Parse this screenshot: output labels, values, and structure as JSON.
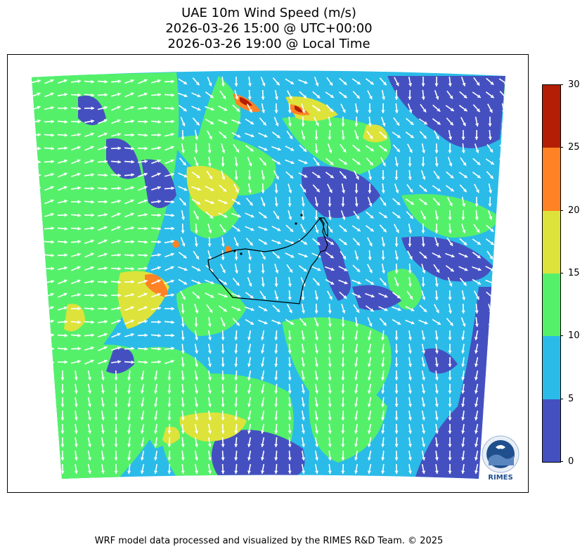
{
  "title": {
    "line1": "UAE 10m Wind Speed (m/s)",
    "line2": "2026-03-26 15:00 @ UTC+00:00",
    "line3": "2026-03-26 19:00 @ Local Time"
  },
  "colorbar": {
    "ticks": [
      "0",
      "5",
      "10",
      "15",
      "20",
      "25",
      "30"
    ],
    "bins": [
      {
        "min": 0,
        "max": 5,
        "color": "#4550c0"
      },
      {
        "min": 5,
        "max": 10,
        "color": "#2bbbe8"
      },
      {
        "min": 10,
        "max": 15,
        "color": "#55f06a"
      },
      {
        "min": 15,
        "max": 20,
        "color": "#dde33a"
      },
      {
        "min": 20,
        "max": 25,
        "color": "#ff8224"
      },
      {
        "min": 25,
        "max": 30,
        "color": "#b31e05"
      }
    ]
  },
  "logo": {
    "text": "RIMES",
    "icon": "rimes-logo-icon"
  },
  "footer": "WRF model data processed and visualized by the RIMES R&D Team. © 2025",
  "colors": {
    "arrow": "#ffffff",
    "boundary": "#000000"
  }
}
